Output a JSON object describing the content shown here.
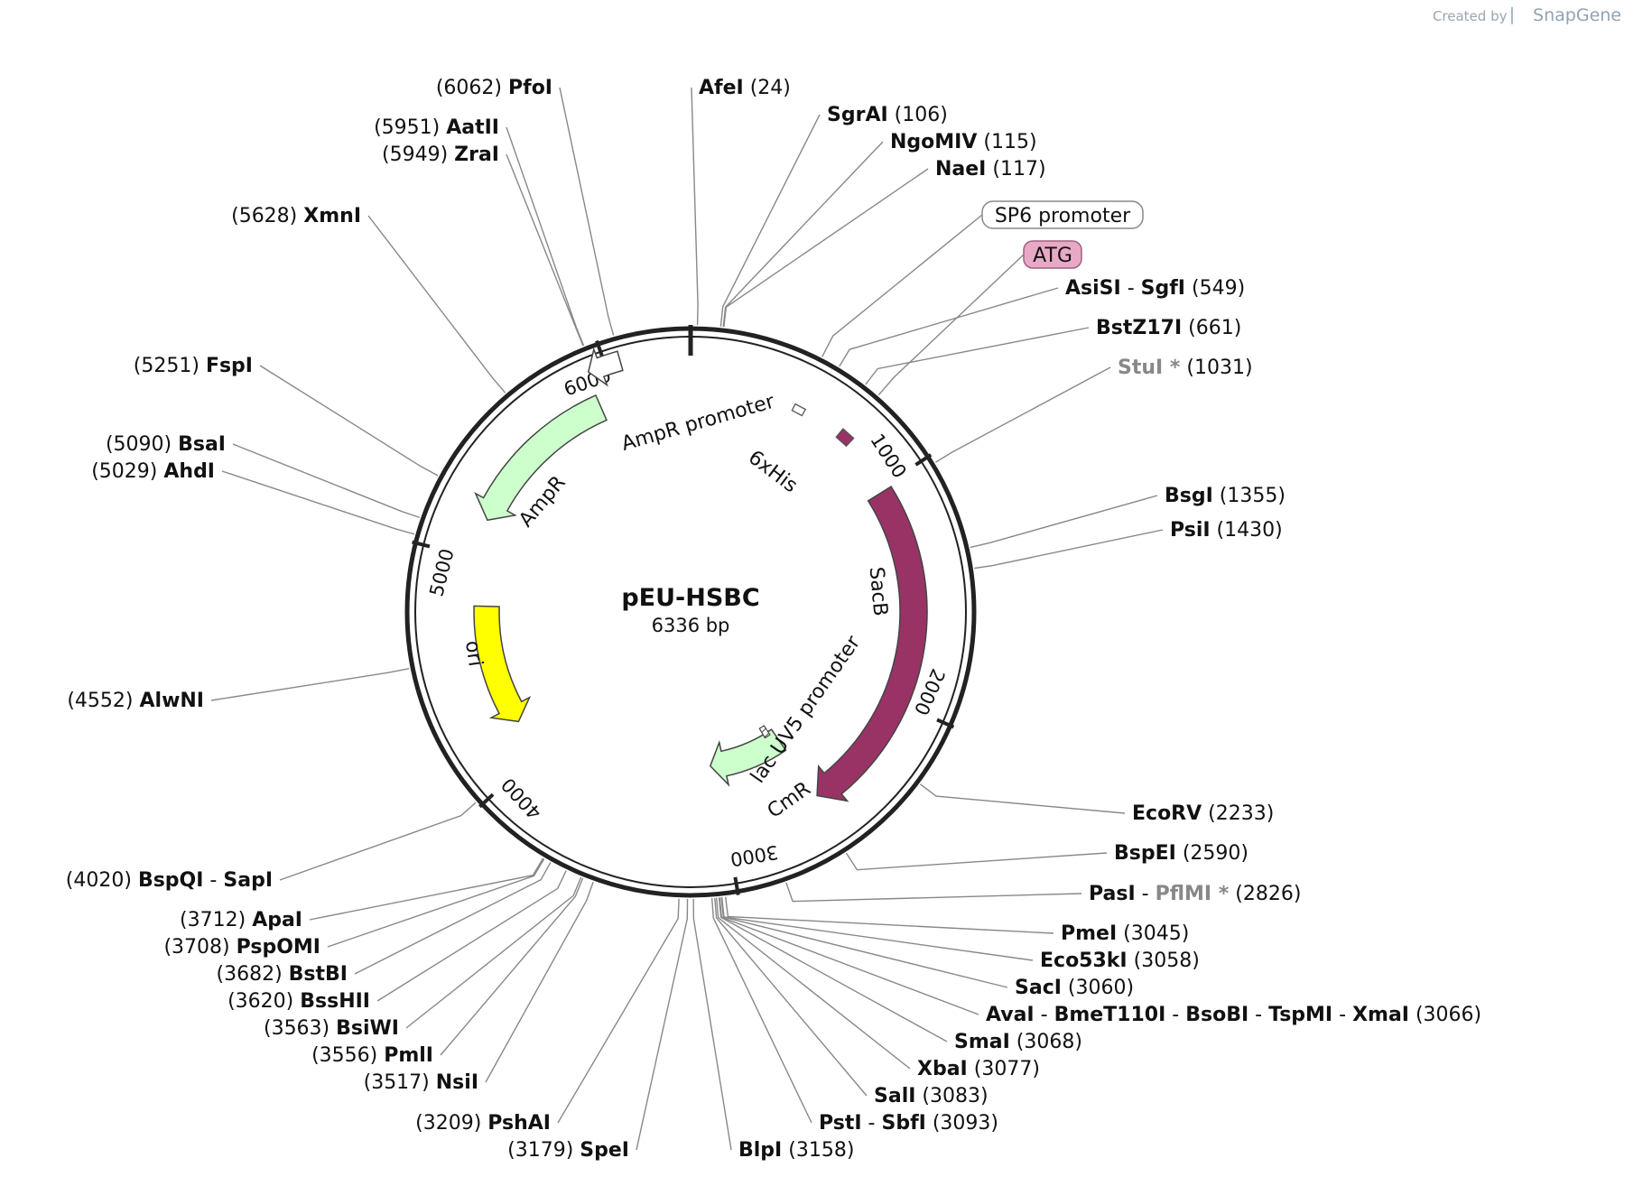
{
  "watermark": {
    "created_by": "Created by",
    "brand": "SnapGene"
  },
  "plasmid": {
    "name": "pEU-HSBC",
    "length_label": "6336 bp",
    "length_bp": 6336
  },
  "ticks": [
    {
      "bp": 0,
      "label": ""
    },
    {
      "bp": 1000,
      "label": "1000"
    },
    {
      "bp": 2000,
      "label": "2000"
    },
    {
      "bp": 3000,
      "label": "3000"
    },
    {
      "bp": 4000,
      "label": "4000"
    },
    {
      "bp": 5000,
      "label": "5000"
    },
    {
      "bp": 6000,
      "label": "6000"
    }
  ],
  "features": [
    {
      "name": "SacB",
      "start": 1020,
      "end": 2560,
      "color": "#993366",
      "label": "SacB"
    },
    {
      "name": "CmR",
      "start": 2560,
      "end": 3040,
      "color": "#ccffcc",
      "label": "CmR"
    },
    {
      "name": "lac UV5 promoter",
      "start": 2580,
      "end": 2620,
      "color": "#ffffff",
      "label": "lac UV5 promoter"
    },
    {
      "name": "ori",
      "start": 4780,
      "end": 4180,
      "color": "#ffff00",
      "label": "ori"
    },
    {
      "name": "AmpR",
      "start": 5920,
      "end": 5180,
      "color": "#ccffcc",
      "label": "AmpR"
    },
    {
      "name": "AmpR promoter",
      "start": 6060,
      "end": 5930,
      "color": "#ffffff",
      "label": "AmpR promoter"
    },
    {
      "name": "6xHis",
      "start": 470,
      "end": 520,
      "color": "#ffffff",
      "label": "6xHis"
    },
    {
      "name": "ATG-segment",
      "start": 700,
      "end": 760,
      "color": "#993366",
      "label": ""
    }
  ],
  "callouts": [
    {
      "text": "SP6 promoter",
      "style": "white"
    },
    {
      "text": "ATG",
      "style": "pink"
    }
  ],
  "sites": [
    {
      "pos": "(6062)",
      "names": [
        "PfoI"
      ],
      "side": "left"
    },
    {
      "pos": "(24)",
      "names": [
        "AfeI"
      ],
      "side": "right"
    },
    {
      "pos": "(5951)",
      "names": [
        "AatII"
      ],
      "side": "left"
    },
    {
      "pos": "(5949)",
      "names": [
        "ZraI"
      ],
      "side": "left"
    },
    {
      "pos": "(106)",
      "names": [
        "SgrAI"
      ],
      "side": "right"
    },
    {
      "pos": "(115)",
      "names": [
        "NgoMIV"
      ],
      "side": "right"
    },
    {
      "pos": "(117)",
      "names": [
        "NaeI"
      ],
      "side": "right"
    },
    {
      "pos": "(5628)",
      "names": [
        "XmnI"
      ],
      "side": "left"
    },
    {
      "pos": "(549)",
      "names": [
        "AsiSI",
        "SgfI"
      ],
      "side": "right"
    },
    {
      "pos": "(661)",
      "names": [
        "BstZ17I"
      ],
      "side": "right"
    },
    {
      "pos": "(1031)",
      "names": [
        "StuI *"
      ],
      "side": "right",
      "grey": [
        true
      ]
    },
    {
      "pos": "(5251)",
      "names": [
        "FspI"
      ],
      "side": "left"
    },
    {
      "pos": "(5090)",
      "names": [
        "BsaI"
      ],
      "side": "left"
    },
    {
      "pos": "(5029)",
      "names": [
        "AhdI"
      ],
      "side": "left"
    },
    {
      "pos": "(1355)",
      "names": [
        "BsgI"
      ],
      "side": "right"
    },
    {
      "pos": "(1430)",
      "names": [
        "PsiI"
      ],
      "side": "right"
    },
    {
      "pos": "(4552)",
      "names": [
        "AlwNI"
      ],
      "side": "left"
    },
    {
      "pos": "(2233)",
      "names": [
        "EcoRV"
      ],
      "side": "right"
    },
    {
      "pos": "(2590)",
      "names": [
        "BspEI"
      ],
      "side": "right"
    },
    {
      "pos": "(2826)",
      "names": [
        "PasI",
        "PflMI *"
      ],
      "side": "right",
      "grey": [
        false,
        true
      ]
    },
    {
      "pos": "(4020)",
      "names": [
        "BspQI",
        "SapI"
      ],
      "side": "left"
    },
    {
      "pos": "(3045)",
      "names": [
        "PmeI"
      ],
      "side": "right"
    },
    {
      "pos": "(3058)",
      "names": [
        "Eco53kI"
      ],
      "side": "right"
    },
    {
      "pos": "(3060)",
      "names": [
        "SacI"
      ],
      "side": "right"
    },
    {
      "pos": "(3066)",
      "names": [
        "AvaI",
        "BmeT110I",
        "BsoBI",
        "TspMI",
        "XmaI"
      ],
      "side": "right"
    },
    {
      "pos": "(3068)",
      "names": [
        "SmaI"
      ],
      "side": "right"
    },
    {
      "pos": "(3077)",
      "names": [
        "XbaI"
      ],
      "side": "right"
    },
    {
      "pos": "(3083)",
      "names": [
        "SalI"
      ],
      "side": "right"
    },
    {
      "pos": "(3093)",
      "names": [
        "PstI",
        "SbfI"
      ],
      "side": "right"
    },
    {
      "pos": "(3158)",
      "names": [
        "BlpI"
      ],
      "side": "right"
    },
    {
      "pos": "(3712)",
      "names": [
        "ApaI"
      ],
      "side": "left"
    },
    {
      "pos": "(3708)",
      "names": [
        "PspOMI"
      ],
      "side": "left"
    },
    {
      "pos": "(3682)",
      "names": [
        "BstBI"
      ],
      "side": "left"
    },
    {
      "pos": "(3620)",
      "names": [
        "BssHII"
      ],
      "side": "left"
    },
    {
      "pos": "(3563)",
      "names": [
        "BsiWI"
      ],
      "side": "left"
    },
    {
      "pos": "(3556)",
      "names": [
        "PmlI"
      ],
      "side": "left"
    },
    {
      "pos": "(3517)",
      "names": [
        "NsiI"
      ],
      "side": "left"
    },
    {
      "pos": "(3209)",
      "names": [
        "PshAI"
      ],
      "side": "left"
    },
    {
      "pos": "(3179)",
      "names": [
        "SpeI"
      ],
      "side": "left"
    }
  ]
}
